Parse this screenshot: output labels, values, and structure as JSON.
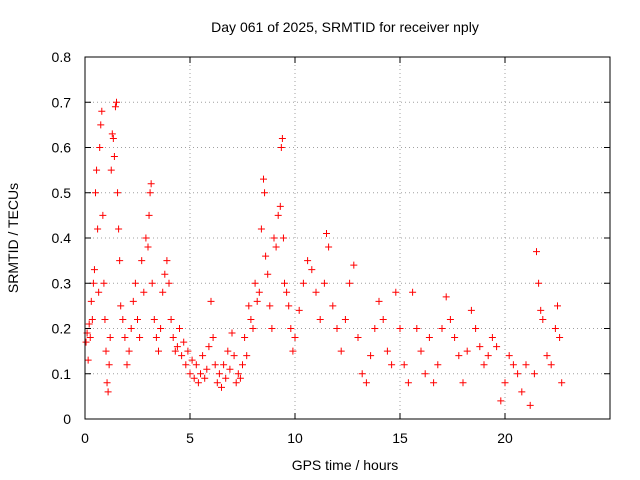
{
  "chart_data": {
    "type": "scatter",
    "title": "Day 061 of 2025, SRMTID for receiver nply",
    "xlabel": "GPS time / hours",
    "ylabel": "SRMTID / TECUs",
    "xlim": [
      0,
      25
    ],
    "ylim": [
      0,
      0.8
    ],
    "xticks": [
      0,
      5,
      10,
      15,
      20
    ],
    "xtick_labels": [
      "0",
      "5",
      "10",
      "15",
      "20"
    ],
    "yticks": [
      0,
      0.1,
      0.2,
      0.3,
      0.4,
      0.5,
      0.6,
      0.7,
      0.8
    ],
    "ytick_labels": [
      "0",
      "0.1",
      "0.2",
      "0.3",
      "0.4",
      "0.5",
      "0.6",
      "0.7",
      "0.8"
    ],
    "grid": true,
    "marker": "+",
    "series": [
      {
        "name": "SRMTID",
        "color": "#ff0000",
        "points": [
          [
            0.05,
            0.17
          ],
          [
            0.1,
            0.19
          ],
          [
            0.15,
            0.13
          ],
          [
            0.2,
            0.21
          ],
          [
            0.25,
            0.18
          ],
          [
            0.3,
            0.26
          ],
          [
            0.35,
            0.22
          ],
          [
            0.4,
            0.3
          ],
          [
            0.45,
            0.33
          ],
          [
            0.5,
            0.5
          ],
          [
            0.55,
            0.55
          ],
          [
            0.6,
            0.42
          ],
          [
            0.65,
            0.28
          ],
          [
            0.7,
            0.6
          ],
          [
            0.75,
            0.65
          ],
          [
            0.8,
            0.68
          ],
          [
            0.85,
            0.45
          ],
          [
            0.9,
            0.3
          ],
          [
            0.95,
            0.22
          ],
          [
            1.0,
            0.15
          ],
          [
            1.05,
            0.08
          ],
          [
            1.1,
            0.06
          ],
          [
            1.15,
            0.12
          ],
          [
            1.2,
            0.18
          ],
          [
            1.25,
            0.55
          ],
          [
            1.3,
            0.63
          ],
          [
            1.35,
            0.62
          ],
          [
            1.4,
            0.58
          ],
          [
            1.45,
            0.69
          ],
          [
            1.5,
            0.7
          ],
          [
            1.55,
            0.5
          ],
          [
            1.6,
            0.42
          ],
          [
            1.65,
            0.35
          ],
          [
            1.7,
            0.25
          ],
          [
            1.8,
            0.22
          ],
          [
            1.9,
            0.18
          ],
          [
            2.0,
            0.12
          ],
          [
            2.1,
            0.15
          ],
          [
            2.2,
            0.2
          ],
          [
            2.3,
            0.26
          ],
          [
            2.4,
            0.3
          ],
          [
            2.5,
            0.22
          ],
          [
            2.6,
            0.18
          ],
          [
            2.7,
            0.35
          ],
          [
            2.8,
            0.28
          ],
          [
            2.9,
            0.4
          ],
          [
            3.0,
            0.38
          ],
          [
            3.05,
            0.45
          ],
          [
            3.1,
            0.5
          ],
          [
            3.15,
            0.52
          ],
          [
            3.2,
            0.3
          ],
          [
            3.3,
            0.22
          ],
          [
            3.4,
            0.18
          ],
          [
            3.5,
            0.15
          ],
          [
            3.6,
            0.2
          ],
          [
            3.7,
            0.28
          ],
          [
            3.8,
            0.32
          ],
          [
            3.9,
            0.35
          ],
          [
            4.0,
            0.3
          ],
          [
            4.1,
            0.22
          ],
          [
            4.2,
            0.18
          ],
          [
            4.3,
            0.15
          ],
          [
            4.4,
            0.16
          ],
          [
            4.5,
            0.2
          ],
          [
            4.6,
            0.14
          ],
          [
            4.7,
            0.17
          ],
          [
            4.8,
            0.12
          ],
          [
            4.9,
            0.15
          ],
          [
            5.0,
            0.1
          ],
          [
            5.1,
            0.13
          ],
          [
            5.2,
            0.09
          ],
          [
            5.3,
            0.12
          ],
          [
            5.4,
            0.08
          ],
          [
            5.5,
            0.1
          ],
          [
            5.6,
            0.14
          ],
          [
            5.7,
            0.09
          ],
          [
            5.8,
            0.11
          ],
          [
            5.9,
            0.16
          ],
          [
            6.0,
            0.26
          ],
          [
            6.1,
            0.18
          ],
          [
            6.2,
            0.12
          ],
          [
            6.3,
            0.08
          ],
          [
            6.4,
            0.1
          ],
          [
            6.5,
            0.07
          ],
          [
            6.6,
            0.12
          ],
          [
            6.7,
            0.09
          ],
          [
            6.8,
            0.15
          ],
          [
            6.9,
            0.11
          ],
          [
            7.0,
            0.19
          ],
          [
            7.1,
            0.14
          ],
          [
            7.2,
            0.08
          ],
          [
            7.3,
            0.1
          ],
          [
            7.4,
            0.09
          ],
          [
            7.5,
            0.12
          ],
          [
            7.6,
            0.18
          ],
          [
            7.7,
            0.14
          ],
          [
            7.8,
            0.25
          ],
          [
            7.9,
            0.22
          ],
          [
            8.0,
            0.2
          ],
          [
            8.1,
            0.3
          ],
          [
            8.2,
            0.26
          ],
          [
            8.3,
            0.28
          ],
          [
            8.4,
            0.42
          ],
          [
            8.5,
            0.53
          ],
          [
            8.55,
            0.5
          ],
          [
            8.6,
            0.36
          ],
          [
            8.7,
            0.32
          ],
          [
            8.8,
            0.25
          ],
          [
            8.9,
            0.2
          ],
          [
            9.0,
            0.4
          ],
          [
            9.1,
            0.38
          ],
          [
            9.2,
            0.45
          ],
          [
            9.3,
            0.47
          ],
          [
            9.35,
            0.6
          ],
          [
            9.4,
            0.62
          ],
          [
            9.45,
            0.4
          ],
          [
            9.5,
            0.3
          ],
          [
            9.6,
            0.28
          ],
          [
            9.7,
            0.25
          ],
          [
            9.8,
            0.2
          ],
          [
            9.9,
            0.15
          ],
          [
            10.0,
            0.18
          ],
          [
            10.2,
            0.24
          ],
          [
            10.4,
            0.3
          ],
          [
            10.6,
            0.35
          ],
          [
            10.8,
            0.33
          ],
          [
            11.0,
            0.28
          ],
          [
            11.2,
            0.22
          ],
          [
            11.4,
            0.3
          ],
          [
            11.5,
            0.41
          ],
          [
            11.6,
            0.38
          ],
          [
            11.8,
            0.25
          ],
          [
            12.0,
            0.2
          ],
          [
            12.2,
            0.15
          ],
          [
            12.4,
            0.22
          ],
          [
            12.6,
            0.3
          ],
          [
            12.8,
            0.34
          ],
          [
            13.0,
            0.18
          ],
          [
            13.2,
            0.1
          ],
          [
            13.4,
            0.08
          ],
          [
            13.6,
            0.14
          ],
          [
            13.8,
            0.2
          ],
          [
            14.0,
            0.26
          ],
          [
            14.2,
            0.22
          ],
          [
            14.4,
            0.15
          ],
          [
            14.6,
            0.12
          ],
          [
            14.8,
            0.28
          ],
          [
            15.0,
            0.2
          ],
          [
            15.2,
            0.12
          ],
          [
            15.4,
            0.08
          ],
          [
            15.6,
            0.28
          ],
          [
            15.8,
            0.2
          ],
          [
            16.0,
            0.15
          ],
          [
            16.2,
            0.1
          ],
          [
            16.4,
            0.18
          ],
          [
            16.6,
            0.08
          ],
          [
            16.8,
            0.12
          ],
          [
            17.0,
            0.2
          ],
          [
            17.2,
            0.27
          ],
          [
            17.4,
            0.22
          ],
          [
            17.6,
            0.18
          ],
          [
            17.8,
            0.14
          ],
          [
            18.0,
            0.08
          ],
          [
            18.2,
            0.15
          ],
          [
            18.4,
            0.24
          ],
          [
            18.6,
            0.2
          ],
          [
            18.8,
            0.16
          ],
          [
            19.0,
            0.12
          ],
          [
            19.2,
            0.14
          ],
          [
            19.4,
            0.18
          ],
          [
            19.6,
            0.16
          ],
          [
            19.8,
            0.04
          ],
          [
            20.0,
            0.08
          ],
          [
            20.2,
            0.14
          ],
          [
            20.4,
            0.12
          ],
          [
            20.6,
            0.1
          ],
          [
            20.8,
            0.06
          ],
          [
            21.0,
            0.12
          ],
          [
            21.2,
            0.03
          ],
          [
            21.4,
            0.1
          ],
          [
            21.5,
            0.37
          ],
          [
            21.6,
            0.3
          ],
          [
            21.7,
            0.24
          ],
          [
            21.8,
            0.22
          ],
          [
            22.0,
            0.14
          ],
          [
            22.2,
            0.12
          ],
          [
            22.4,
            0.2
          ],
          [
            22.5,
            0.25
          ],
          [
            22.6,
            0.18
          ],
          [
            22.7,
            0.08
          ]
        ]
      }
    ]
  }
}
